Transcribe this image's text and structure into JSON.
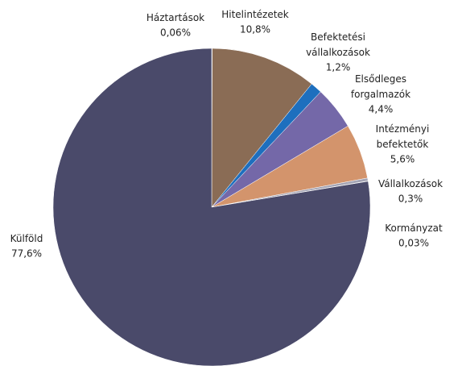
{
  "chart_data": {
    "type": "pie",
    "categories": [
      "Háztartások",
      "Hitelintézetek",
      "Befektetési vállalkozások",
      "Elsődleges forgalmazók",
      "Intézményi befektetők",
      "Vállalkozások",
      "Kormányzat",
      "Külföld"
    ],
    "values": [
      0.06,
      10.8,
      1.2,
      4.4,
      5.6,
      0.3,
      0.03,
      77.6
    ],
    "value_labels": [
      "0,06%",
      "10,8%",
      "1,2%",
      "4,4%",
      "5,6%",
      "0,3%",
      "0,03%",
      "77,6%"
    ],
    "colors": [
      "#9a9aa8",
      "#8a6c55",
      "#1e6fbe",
      "#7468a8",
      "#d3946c",
      "#a4a4b4",
      "#c8c8d0",
      "#4a4a6a"
    ]
  }
}
